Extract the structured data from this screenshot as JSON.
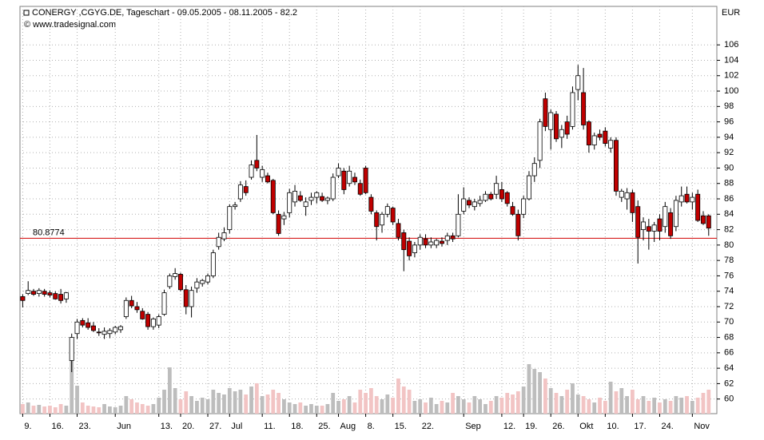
{
  "chart_data": {
    "type": "candlestick",
    "title": "CONERGY ,CGYG.DE, Tageschart - 09.05.2005 - 08.11.2005 - 82.2",
    "subtitle": "© www.tradesignal.com",
    "y_unit": "EUR",
    "open": [
      73.3,
      73.7,
      74.0,
      73.7,
      74.0,
      73.8,
      73.7,
      73.6,
      73.0,
      65.0,
      68.5,
      70.2,
      69.9,
      69.5,
      68.7,
      68.4,
      68.5,
      68.7,
      69.0,
      70.7,
      72.8,
      72.0,
      71.4,
      71.0,
      69.4,
      69.6,
      71.0,
      74.6,
      75.9,
      76.2,
      74.2,
      72.0,
      74.4,
      75.0,
      75.2,
      76.0,
      79.8,
      80.8,
      82.0,
      85.0,
      86.0,
      87.6,
      88.8,
      91.0,
      88.8,
      89.0,
      88.4,
      84.0,
      83.4,
      84.2,
      85.6,
      86.4,
      85.0,
      85.8,
      86.2,
      86.3,
      85.8,
      86.0,
      89.0,
      89.6,
      88.0,
      88.8,
      88.0,
      90.0,
      86.2,
      84.2,
      82.6,
      84.0,
      84.8,
      82.8,
      81.6,
      80.5,
      79.0,
      80.0,
      80.8,
      80.0,
      80.0,
      80.5,
      80.6,
      81.2,
      81.2,
      84.4,
      85.8,
      85.0,
      85.4,
      85.8,
      86.6,
      86.6,
      87.2,
      86.8,
      85.0,
      84.0,
      84.0,
      86.0,
      89.0,
      91.0,
      99.0,
      95.0,
      97.0,
      94.0,
      96.0,
      95.4,
      100.2,
      99.8,
      96.0,
      93.0,
      94.4,
      94.8,
      92.6,
      93.6,
      86.2,
      86.0,
      86.8,
      85.0,
      82.0,
      82.4,
      81.8,
      83.4,
      82.4,
      84.2,
      82.4,
      85.6,
      86.6,
      85.6,
      86.6,
      83.8,
      83.8
    ],
    "high": [
      73.6,
      75.3,
      74.3,
      74.4,
      74.3,
      74.1,
      74.0,
      74.3,
      73.9,
      68.5,
      70.4,
      70.5,
      70.5,
      70.0,
      69.2,
      69.3,
      69.2,
      69.5,
      69.6,
      73.2,
      73.4,
      72.6,
      71.8,
      71.3,
      70.6,
      71.0,
      74.2,
      76.3,
      77.0,
      76.4,
      74.8,
      74.6,
      75.7,
      75.6,
      76.3,
      79.4,
      81.6,
      82.3,
      85.3,
      85.6,
      88.3,
      88.4,
      91.0,
      94.3,
      90.3,
      89.4,
      88.6,
      84.5,
      84.3,
      87.3,
      87.8,
      87.0,
      86.2,
      86.8,
      87.0,
      86.8,
      86.3,
      89.3,
      90.6,
      90.0,
      90.3,
      89.4,
      88.5,
      90.3,
      86.6,
      84.5,
      84.3,
      85.4,
      85.0,
      83.4,
      82.0,
      81.0,
      80.4,
      81.4,
      81.4,
      81.0,
      80.8,
      81.0,
      81.6,
      81.6,
      86.6,
      87.5,
      86.2,
      86.0,
      86.4,
      87.0,
      86.9,
      89.0,
      88.2,
      87.0,
      85.6,
      84.6,
      86.4,
      89.6,
      91.4,
      96.4,
      99.8,
      97.6,
      97.4,
      95.6,
      96.8,
      100.6,
      103.4,
      103.0,
      96.2,
      94.6,
      95.0,
      95.3,
      94.0,
      94.0,
      87.3,
      87.4,
      87.2,
      85.8,
      83.6,
      83.4,
      83.0,
      84.0,
      85.6,
      84.8,
      86.4,
      87.6,
      87.6,
      86.8,
      87.2,
      84.4,
      84.0
    ],
    "low": [
      71.9,
      73.5,
      73.4,
      73.3,
      73.3,
      73.2,
      72.9,
      72.4,
      72.5,
      63.5,
      67.8,
      69.3,
      69.0,
      68.7,
      68.2,
      67.8,
      67.9,
      68.4,
      68.6,
      70.4,
      71.8,
      71.2,
      70.3,
      69.0,
      69.0,
      69.2,
      70.8,
      74.3,
      75.5,
      74.0,
      71.0,
      70.6,
      73.8,
      74.6,
      74.9,
      75.7,
      79.4,
      80.5,
      81.5,
      84.6,
      85.6,
      86.4,
      88.5,
      89.6,
      88.2,
      88.0,
      84.0,
      81.2,
      82.6,
      83.6,
      85.0,
      85.6,
      83.8,
      85.2,
      85.4,
      85.6,
      85.3,
      85.7,
      88.7,
      86.6,
      87.6,
      87.8,
      86.4,
      86.6,
      84.0,
      80.6,
      81.6,
      83.6,
      82.6,
      80.6,
      76.6,
      78.0,
      78.4,
      79.4,
      79.6,
      79.6,
      79.6,
      79.8,
      80.0,
      80.4,
      81.0,
      84.0,
      84.8,
      84.5,
      85.0,
      85.6,
      85.8,
      86.0,
      85.6,
      85.0,
      83.8,
      80.6,
      83.5,
      85.8,
      88.2,
      90.0,
      94.8,
      92.4,
      93.4,
      92.6,
      93.8,
      95.0,
      98.8,
      95.0,
      92.0,
      92.4,
      93.6,
      92.8,
      92.0,
      86.4,
      85.6,
      84.6,
      83.0,
      77.6,
      80.6,
      79.4,
      80.4,
      80.6,
      81.6,
      80.8,
      81.8,
      85.0,
      85.4,
      84.6,
      83.0,
      82.6,
      81.2
    ],
    "close": [
      72.8,
      74.1,
      73.6,
      74.1,
      73.6,
      73.5,
      73.0,
      72.8,
      73.8,
      68.0,
      70.0,
      69.6,
      69.3,
      68.9,
      68.6,
      68.8,
      68.9,
      69.3,
      69.4,
      72.8,
      72.1,
      71.6,
      70.4,
      69.4,
      70.4,
      70.7,
      73.8,
      76.0,
      76.3,
      74.2,
      72.0,
      74.1,
      75.2,
      75.4,
      76.0,
      79.0,
      81.0,
      81.6,
      85.0,
      85.2,
      87.8,
      86.8,
      90.4,
      90.0,
      89.8,
      88.2,
      84.2,
      81.5,
      83.8,
      86.8,
      87.0,
      85.8,
      85.6,
      86.2,
      86.8,
      85.8,
      86.1,
      88.8,
      90.0,
      87.2,
      89.6,
      88.2,
      86.6,
      86.8,
      84.4,
      82.4,
      84.0,
      85.0,
      83.0,
      81.0,
      79.4,
      78.6,
      80.0,
      81.0,
      80.0,
      80.4,
      80.6,
      80.2,
      81.2,
      80.8,
      84.0,
      86.0,
      85.2,
      85.6,
      85.8,
      86.6,
      86.0,
      88.0,
      86.0,
      85.4,
      84.0,
      81.2,
      86.0,
      89.0,
      90.6,
      96.0,
      95.4,
      97.2,
      93.8,
      95.0,
      94.4,
      99.8,
      102.0,
      95.6,
      93.0,
      94.2,
      94.0,
      93.2,
      93.6,
      87.0,
      87.0,
      86.8,
      84.2,
      81.0,
      83.0,
      81.8,
      82.6,
      81.8,
      85.0,
      81.2,
      85.8,
      86.4,
      85.6,
      86.2,
      83.2,
      82.8,
      82.2
    ],
    "volume": [
      12,
      14,
      10,
      11,
      9,
      10,
      8,
      12,
      10,
      78,
      35,
      14,
      10,
      9,
      8,
      12,
      9,
      8,
      10,
      22,
      18,
      14,
      12,
      10,
      12,
      20,
      30,
      58,
      32,
      18,
      28,
      22,
      16,
      20,
      18,
      30,
      26,
      24,
      32,
      28,
      30,
      24,
      34,
      38,
      22,
      24,
      30,
      26,
      18,
      14,
      12,
      14,
      10,
      12,
      10,
      10,
      12,
      26,
      16,
      18,
      22,
      14,
      30,
      26,
      32,
      22,
      18,
      24,
      20,
      44,
      34,
      30,
      16,
      18,
      14,
      20,
      12,
      16,
      14,
      26,
      22,
      18,
      14,
      22,
      18,
      12,
      16,
      22,
      20,
      26,
      24,
      28,
      34,
      62,
      56,
      52,
      44,
      32,
      26,
      22,
      30,
      38,
      24,
      22,
      18,
      14,
      20,
      16,
      40,
      28,
      32,
      22,
      30,
      18,
      22,
      16,
      20,
      14,
      18,
      16,
      22,
      20,
      22,
      16,
      20,
      26,
      30
    ],
    "vlim": [
      0,
      100
    ],
    "up_color": "#ffffff",
    "down_color": "#c00000",
    "volume_up_color": "#bdbdbd",
    "volume_down_color": "#f2c4c4",
    "xlim": [
      -0.5,
      127.5
    ],
    "xticks": [
      {
        "value": 0,
        "label": "9."
      },
      {
        "value": 5,
        "label": "16."
      },
      {
        "value": 10,
        "label": "23."
      },
      {
        "value": 17,
        "label": "Jun"
      },
      {
        "value": 25,
        "label": "13."
      },
      {
        "value": 29,
        "label": "20."
      },
      {
        "value": 34,
        "label": "27."
      },
      {
        "value": 38,
        "label": "Jul"
      },
      {
        "value": 44,
        "label": "11."
      },
      {
        "value": 49,
        "label": "18."
      },
      {
        "value": 54,
        "label": "25."
      },
      {
        "value": 58,
        "label": "Aug"
      },
      {
        "value": 63,
        "label": "8."
      },
      {
        "value": 68,
        "label": "15."
      },
      {
        "value": 73,
        "label": "22."
      },
      {
        "value": 81,
        "label": "Sep"
      },
      {
        "value": 88,
        "label": "12."
      },
      {
        "value": 92,
        "label": "19."
      },
      {
        "value": 97,
        "label": "26."
      },
      {
        "value": 102,
        "label": "Okt"
      },
      {
        "value": 107,
        "label": "10."
      },
      {
        "value": 112,
        "label": "17."
      },
      {
        "value": 117,
        "label": "24."
      },
      {
        "value": 123,
        "label": "Nov"
      }
    ],
    "ylim": [
      58.1,
      111
    ],
    "yticks": [
      60,
      62,
      64,
      66,
      68,
      70,
      72,
      74,
      76,
      78,
      80,
      82,
      84,
      86,
      88,
      90,
      92,
      94,
      96,
      98,
      100,
      102,
      104,
      106
    ],
    "grid": true,
    "reference_line": {
      "value": 80.8774,
      "label": "80.8774",
      "color": "#d00000"
    }
  }
}
